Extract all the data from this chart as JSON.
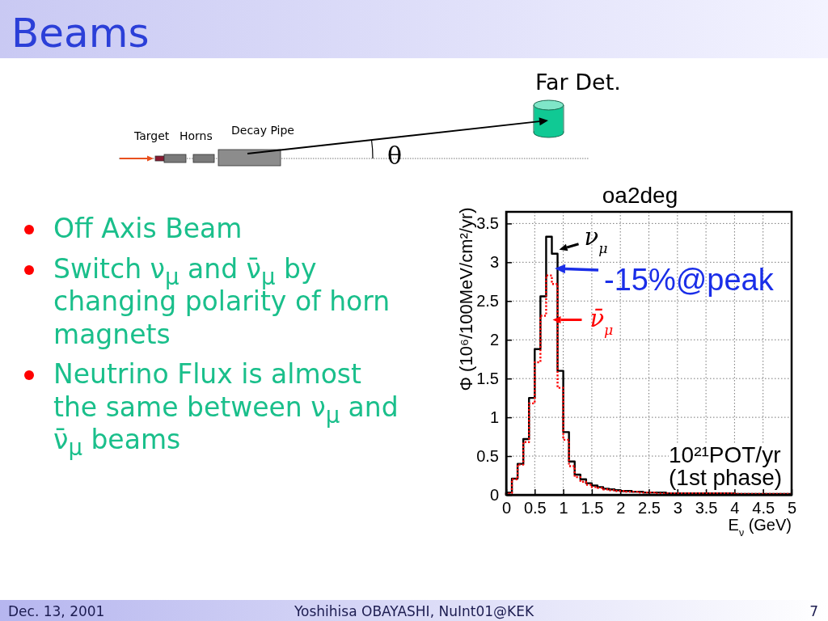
{
  "chart_data": {
    "type": "histogram",
    "title": "oa2deg",
    "xlabel": "E$_{ν}$ (GeV)",
    "ylabel": "Φ (10⁶/100MeV/cm²/yr)",
    "bins": [
      0,
      0.1,
      0.2,
      0.3,
      0.4,
      0.5,
      0.6,
      0.7,
      0.8,
      0.9,
      1,
      1.1,
      1.2,
      1.3,
      1.4,
      1.5,
      1.6,
      1.7,
      1.8,
      1.9,
      2,
      2.1,
      2.2,
      2.3,
      2.4,
      2.5,
      2.6,
      2.7,
      2.8,
      2.9,
      3,
      3.1,
      3.2,
      3.3,
      3.4,
      3.5,
      3.6,
      3.7,
      3.8,
      3.9,
      4,
      4.1,
      4.2,
      4.3,
      4.4,
      4.5,
      4.6,
      4.7,
      4.8,
      4.9,
      5
    ],
    "series": [
      {
        "name": "ν$_{μ}$",
        "color": "#000000",
        "line_style": "solid",
        "values": [
          0.03,
          0.21,
          0.4,
          0.72,
          1.25,
          1.88,
          2.56,
          3.33,
          3.11,
          1.6,
          0.81,
          0.43,
          0.26,
          0.2,
          0.15,
          0.12,
          0.1,
          0.08,
          0.07,
          0.06,
          0.05,
          0.05,
          0.04,
          0.04,
          0.03,
          0.03,
          0.03,
          0.03,
          0.02,
          0.02,
          0.02,
          0.02,
          0.02,
          0.02,
          0.02,
          0.02,
          0.02,
          0.02,
          0.02,
          0.02,
          0.01,
          0.01,
          0.01,
          0.01,
          0.01,
          0.01,
          0.01,
          0.01,
          0.01,
          0.01
        ]
      },
      {
        "name": "ν̄$_{μ}$",
        "color": "#ff0000",
        "line_style": "dotted",
        "values": [
          0.02,
          0.2,
          0.39,
          0.68,
          1.18,
          1.71,
          2.31,
          2.83,
          2.72,
          1.38,
          0.71,
          0.37,
          0.23,
          0.17,
          0.13,
          0.1,
          0.09,
          0.07,
          0.06,
          0.05,
          0.05,
          0.04,
          0.04,
          0.03,
          0.03,
          0.03,
          0.02,
          0.02,
          0.02,
          0.02,
          0.02,
          0.02,
          0.02,
          0.02,
          0.02,
          0.02,
          0.02,
          0.02,
          0.02,
          0.02,
          0.01,
          0.01,
          0.01,
          0.01,
          0.01,
          0.01,
          0.01,
          0.01,
          0.01,
          0.01
        ]
      }
    ],
    "xlim": [
      0,
      5
    ],
    "ylim": [
      0,
      3.65
    ],
    "xticks": [
      0,
      0.5,
      1,
      1.5,
      2,
      2.5,
      3,
      3.5,
      4,
      4.5,
      5
    ],
    "yticks": [
      0,
      0.5,
      1,
      1.5,
      2,
      2.5,
      3,
      3.5
    ],
    "grid": true,
    "legend": "top left",
    "annotations": [
      "Beams",
      "Target",
      "Horns",
      "Decay Pipe",
      "Far Det.",
      "θ",
      "Off Axis Beam",
      "Switch ν$_{μ}$ and ν̄$_{μ}$ by changing polarity of horn magnets",
      "Neutrino Flux is almost the same between ν$_{μ}$ and ν̄$_{μ}$ beams",
      "10²¹POT/yr (1st phase)",
      {
        "text": "-15%@peak",
        "x": 0.85,
        "y": 2.92
      },
      "Dec. 13, 2001",
      "Yoshihisa OBAYASHI, NuInt01@KEK",
      "7"
    ]
  }
}
